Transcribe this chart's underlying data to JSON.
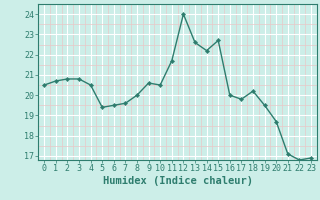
{
  "x": [
    0,
    1,
    2,
    3,
    4,
    5,
    6,
    7,
    8,
    9,
    10,
    11,
    12,
    13,
    14,
    15,
    16,
    17,
    18,
    19,
    20,
    21,
    22,
    23
  ],
  "y": [
    20.5,
    20.7,
    20.8,
    20.8,
    20.5,
    19.4,
    19.5,
    19.6,
    20.0,
    20.6,
    20.5,
    21.7,
    24.0,
    22.6,
    22.2,
    22.7,
    20.0,
    19.8,
    20.2,
    19.5,
    18.7,
    17.1,
    16.8,
    16.9
  ],
  "line_color": "#2e7d6e",
  "marker": "D",
  "marker_size": 2.2,
  "bg_color": "#cceee8",
  "grid_major_color": "#ffffff",
  "grid_minor_color": "#e8c8c8",
  "xlabel": "Humidex (Indice chaleur)",
  "xlim": [
    -0.5,
    23.5
  ],
  "ylim": [
    16.8,
    24.5
  ],
  "yticks": [
    17,
    18,
    19,
    20,
    21,
    22,
    23,
    24
  ],
  "xticks": [
    0,
    1,
    2,
    3,
    4,
    5,
    6,
    7,
    8,
    9,
    10,
    11,
    12,
    13,
    14,
    15,
    16,
    17,
    18,
    19,
    20,
    21,
    22,
    23
  ],
  "tick_color": "#2e7d6e",
  "tick_fontsize": 6,
  "xlabel_fontsize": 7.5,
  "line_width": 1.0,
  "spine_color": "#2e7d6e"
}
